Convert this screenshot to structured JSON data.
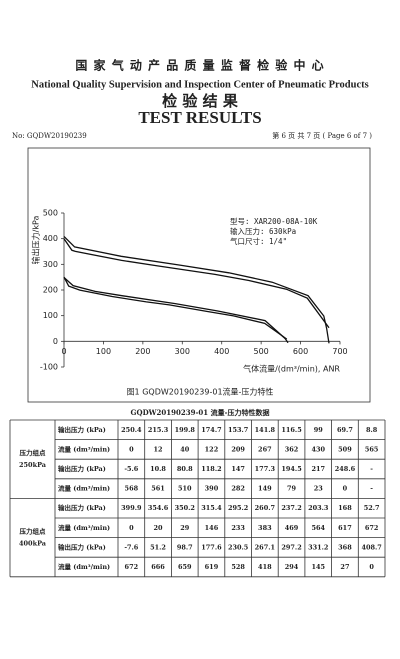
{
  "header": {
    "title_cn": "国 家 气 动 产 品 质 量 监 督 检 验 中 心",
    "title_en": "National Quality Supervision and Inspection Center of Pneumatic Products",
    "subtitle_cn": "检 验 结 果",
    "subtitle_en": "TEST RESULTS",
    "report_no": "No: GQDW20190239",
    "page": "第 6 页 共 7 页 ( Page 6 of 7 )"
  },
  "chart": {
    "type": "line",
    "ylabel": "输出压力/kPa",
    "xlabel": "气体流量/(dm³/min), ANR",
    "annotations": [
      "型号: XAR200-08A-10K",
      "输入压力: 630kPa",
      "气口尺寸: 1/4\""
    ],
    "xlim": [
      0,
      700
    ],
    "ylim": [
      -100,
      500
    ],
    "xticks": [
      0,
      100,
      200,
      300,
      400,
      500,
      600,
      700
    ],
    "yticks": [
      -100,
      0,
      100,
      200,
      300,
      400,
      500
    ],
    "caption": "图1 GQDW20190239-01流量-压力特性"
  },
  "table": {
    "title": "GQDW20190239-01 流量-压力特性数据",
    "groups": [
      {
        "label": "压力组点",
        "setpoint": "250kPa",
        "rows": [
          {
            "label": "输出压力 (kPa)",
            "values": [
              250.4,
              215.3,
              199.8,
              174.7,
              153.7,
              141.8,
              116.5,
              99.0,
              69.7,
              8.8
            ]
          },
          {
            "label": "流量 (dm³/min)",
            "values": [
              0,
              12,
              40,
              122,
              209,
              267,
              362,
              430,
              509,
              565
            ]
          },
          {
            "label": "输出压力 (kPa)",
            "values": [
              -5.6,
              10.8,
              80.8,
              118.2,
              147.0,
              177.3,
              194.5,
              217.0,
              248.6,
              "-"
            ]
          },
          {
            "label": "流量 (dm³/min)",
            "values": [
              568,
              561,
              510,
              390,
              282,
              149,
              79,
              23,
              0,
              "-"
            ]
          }
        ]
      },
      {
        "label": "压力组点",
        "setpoint": "400kPa",
        "rows": [
          {
            "label": "输出压力 (kPa)",
            "values": [
              399.9,
              354.6,
              350.2,
              315.4,
              295.2,
              260.7,
              237.2,
              203.3,
              168.0,
              52.7
            ]
          },
          {
            "label": "流量 (dm³/min)",
            "values": [
              0,
              20,
              29,
              146,
              233,
              383,
              469,
              564,
              617,
              672
            ]
          },
          {
            "label": "输出压力 (kPa)",
            "values": [
              -7.6,
              51.2,
              98.7,
              177.6,
              230.5,
              267.1,
              297.2,
              331.2,
              368.0,
              408.7
            ]
          },
          {
            "label": "流量 (dm³/min)",
            "values": [
              672,
              666,
              659,
              619,
              528,
              418,
              294,
              145,
              27,
              0
            ]
          }
        ]
      }
    ]
  }
}
